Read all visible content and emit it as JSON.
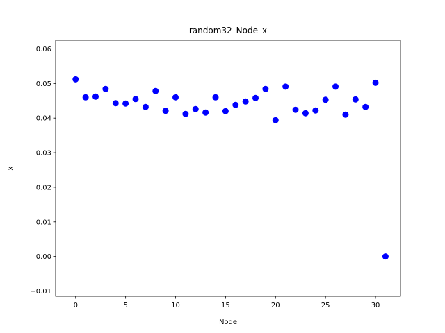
{
  "chart_data": {
    "type": "scatter",
    "title": "random32_Node_x",
    "xlabel": "Node",
    "ylabel": "x",
    "xlim": [
      -2,
      32.5
    ],
    "ylim": [
      -0.0115,
      0.0625
    ],
    "grid": false,
    "color": "#0000ff",
    "xticks": [
      0,
      5,
      10,
      15,
      20,
      25,
      30
    ],
    "xtick_labels": [
      "0",
      "5",
      "10",
      "15",
      "20",
      "25",
      "30"
    ],
    "yticks": [
      -0.01,
      0.0,
      0.01,
      0.02,
      0.03,
      0.04,
      0.05,
      0.06
    ],
    "ytick_labels": [
      "−0.01",
      "0.00",
      "0.01",
      "0.02",
      "0.03",
      "0.04",
      "0.05",
      "0.06"
    ],
    "series": [
      {
        "x": [
          0,
          1,
          2,
          3,
          4,
          5,
          6,
          7,
          8,
          9,
          10,
          11,
          12,
          13,
          14,
          15,
          16,
          17,
          18,
          19,
          20,
          21,
          22,
          23,
          24,
          25,
          26,
          27,
          28,
          29,
          30,
          31
        ],
        "y": [
          0.0512,
          0.046,
          0.0462,
          0.0484,
          0.0443,
          0.0442,
          0.0455,
          0.0432,
          0.0478,
          0.0421,
          0.046,
          0.0412,
          0.0426,
          0.0416,
          0.046,
          0.042,
          0.0438,
          0.0448,
          0.0458,
          0.0484,
          0.0394,
          0.0491,
          0.0424,
          0.0414,
          0.0422,
          0.0453,
          0.0491,
          0.041,
          0.0454,
          0.0432,
          0.0502,
          0.0
        ]
      }
    ]
  }
}
